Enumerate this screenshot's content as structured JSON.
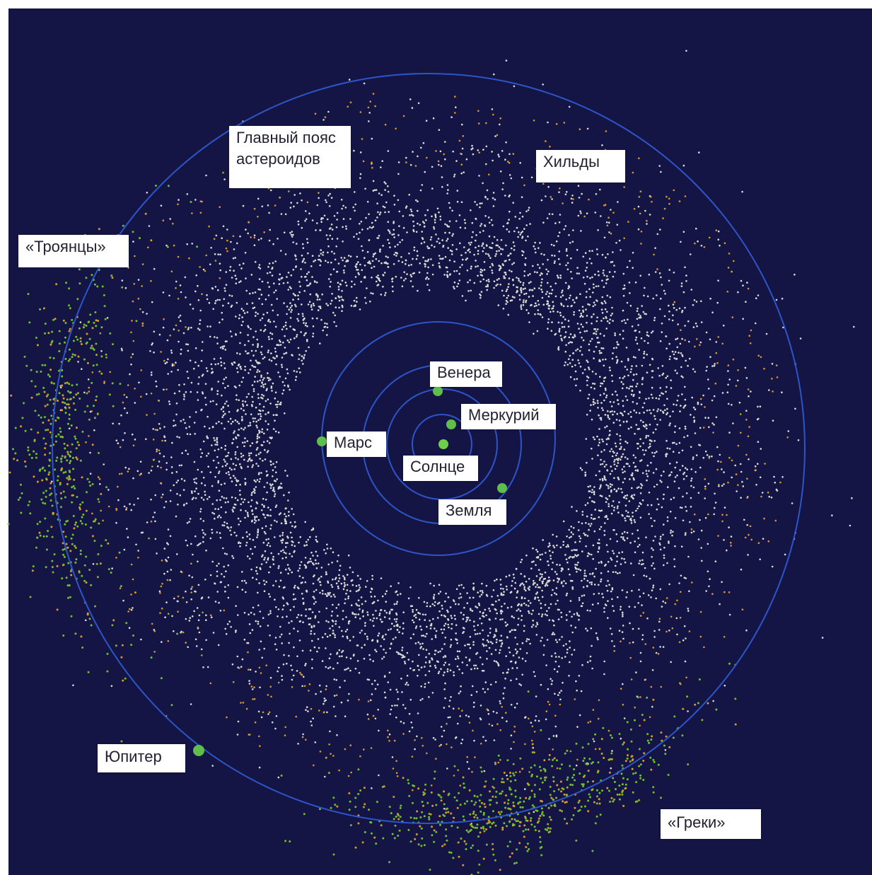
{
  "colors": {
    "background": "#151545",
    "orbit": "#2c55c8",
    "main_belt": "#dcdcd6",
    "trojans": "#6fbf2f",
    "hildas": "#d89a2a",
    "planet": "#5fbf4a",
    "sun": "#6fcf4a"
  },
  "labels": {
    "main_belt": "Главный пояс\nастероидов",
    "hildas": "Хильды",
    "trojans": "«Троянцы»",
    "greeks": "«Греки»",
    "jupiter": "Юпитер",
    "mars": "Марс",
    "venus": "Венера",
    "mercury": "Меркурий",
    "sun": "Солнце",
    "earth": "Земля"
  }
}
